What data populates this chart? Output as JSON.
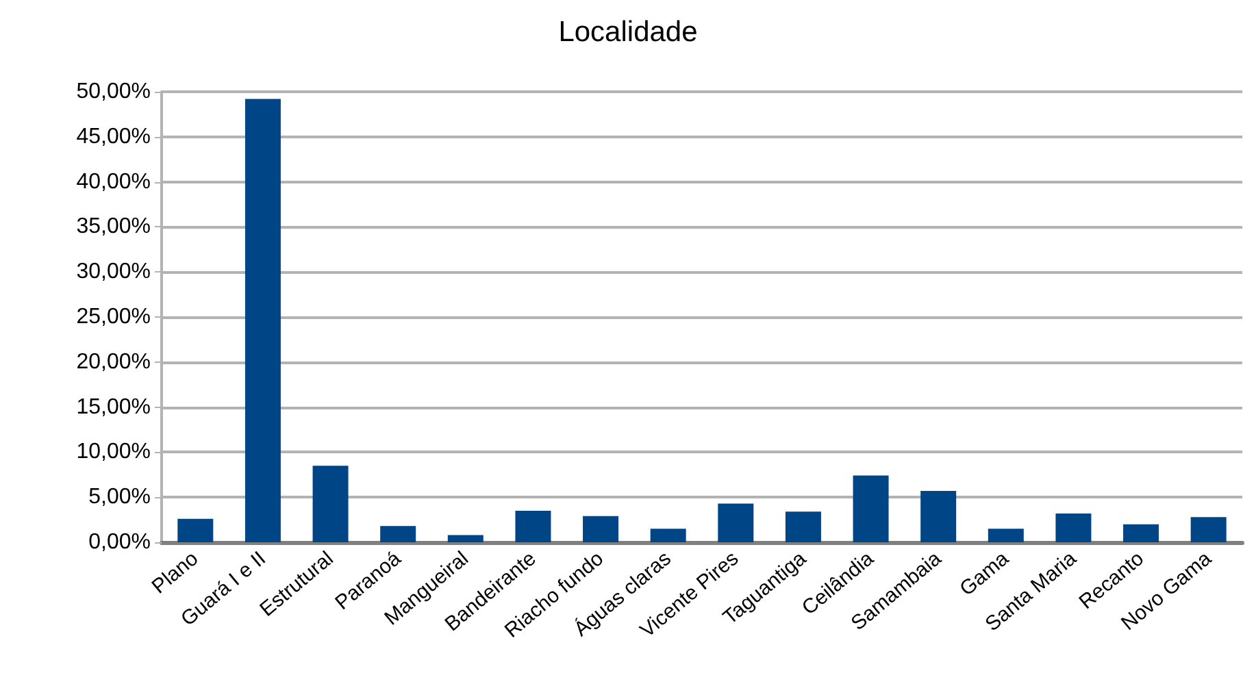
{
  "chart_data": {
    "type": "bar",
    "title": "Localidade",
    "categories": [
      "Plano",
      "Guará I e II",
      "Estrutural",
      "Paranoá",
      "Mangueiral",
      "Bandeirante",
      "Riacho fundo",
      "Águas claras",
      "Vicente Pires",
      "Taguantiga",
      "Ceilândia",
      "Samambaia",
      "Gama",
      "Santa Maria",
      "Recanto",
      "Novo Gama"
    ],
    "values": [
      2.6,
      49.2,
      8.5,
      1.8,
      0.8,
      3.5,
      2.9,
      1.5,
      4.3,
      3.4,
      7.4,
      5.7,
      1.5,
      3.2,
      2.0,
      2.8
    ],
    "color": "#004586",
    "ylim": [
      0,
      50
    ],
    "yticks": [
      {
        "value": 0,
        "label": "0,00%"
      },
      {
        "value": 5,
        "label": "5,00%"
      },
      {
        "value": 10,
        "label": "10,00%"
      },
      {
        "value": 15,
        "label": "15,00%"
      },
      {
        "value": 20,
        "label": "20,00%"
      },
      {
        "value": 25,
        "label": "25,00%"
      },
      {
        "value": 30,
        "label": "30,00%"
      },
      {
        "value": 35,
        "label": "35,00%"
      },
      {
        "value": 40,
        "label": "40,00%"
      },
      {
        "value": 45,
        "label": "45,00%"
      },
      {
        "value": 50,
        "label": "50,00%"
      }
    ],
    "grid": true
  }
}
